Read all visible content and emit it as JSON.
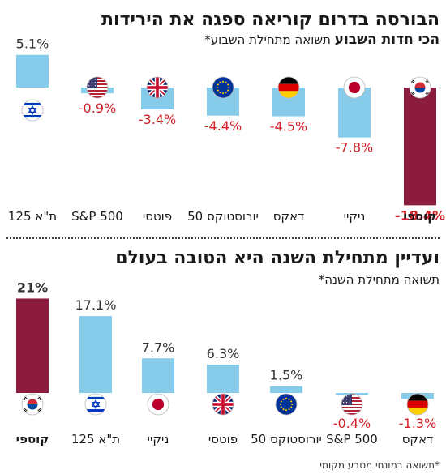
{
  "colors": {
    "bar": "#87CBEA",
    "highlight_bar": "#8B1C3E",
    "negative_text": "#D2232A",
    "positive_text": "#333333"
  },
  "top": {
    "title_line1": "הבורסה בדרום קוריאה ספגה את הירידות",
    "title_line2_bold": "הכי חדות השבוע",
    "title_line2_sub": "תשואה מתחילת השבוע*"
  },
  "bottom": {
    "title": "ועדיין מתחילת השנה היא הטובה בעולם",
    "subtitle": "תשואה מתחילת השנה*"
  },
  "footnote": "*תשואה במונחי מטבע מקומי",
  "chart_data": [
    {
      "type": "bar",
      "title": "הבורסה בדרום קוריאה ספגה את הירידות הכי חדות השבוע",
      "subtitle": "תשואה מתחילת השבוע*",
      "categories": [
        "קוספי",
        "ניקיי",
        "דאקס",
        "יורוסטוקס 50",
        "פוטסי",
        "S&P 500",
        "ת\"א 125"
      ],
      "values": [
        -18.4,
        -7.8,
        -4.5,
        -4.4,
        -3.4,
        -0.9,
        5.1
      ],
      "value_labels": [
        "-18.4%",
        "-7.8%",
        "-4.5%",
        "-4.4%",
        "-3.4%",
        "-0.9%",
        "5.1%"
      ],
      "flags": [
        "south-korea-flag-icon",
        "japan-flag-icon",
        "germany-flag-icon",
        "eu-flag-icon",
        "uk-flag-icon",
        "usa-flag-icon",
        "israel-flag-icon"
      ],
      "highlight": "קוספי"
    },
    {
      "type": "bar",
      "title": "ועדיין מתחילת השנה היא הטובה בעולם",
      "subtitle": "תשואה מתחילת השנה*",
      "categories": [
        "קוספי",
        "ת\"א 125",
        "ניקיי",
        "פוטסי",
        "יורוסטוקס 50",
        "S&P 500",
        "דאקס"
      ],
      "values": [
        21,
        17.1,
        7.7,
        6.3,
        1.5,
        -0.4,
        -1.3
      ],
      "value_labels": [
        "21%",
        "17.1%",
        "7.7%",
        "6.3%",
        "1.5%",
        "-0.4%",
        "-1.3%"
      ],
      "flags": [
        "south-korea-flag-icon",
        "israel-flag-icon",
        "japan-flag-icon",
        "uk-flag-icon",
        "eu-flag-icon",
        "usa-flag-icon",
        "germany-flag-icon"
      ],
      "highlight": "קוספי"
    }
  ]
}
